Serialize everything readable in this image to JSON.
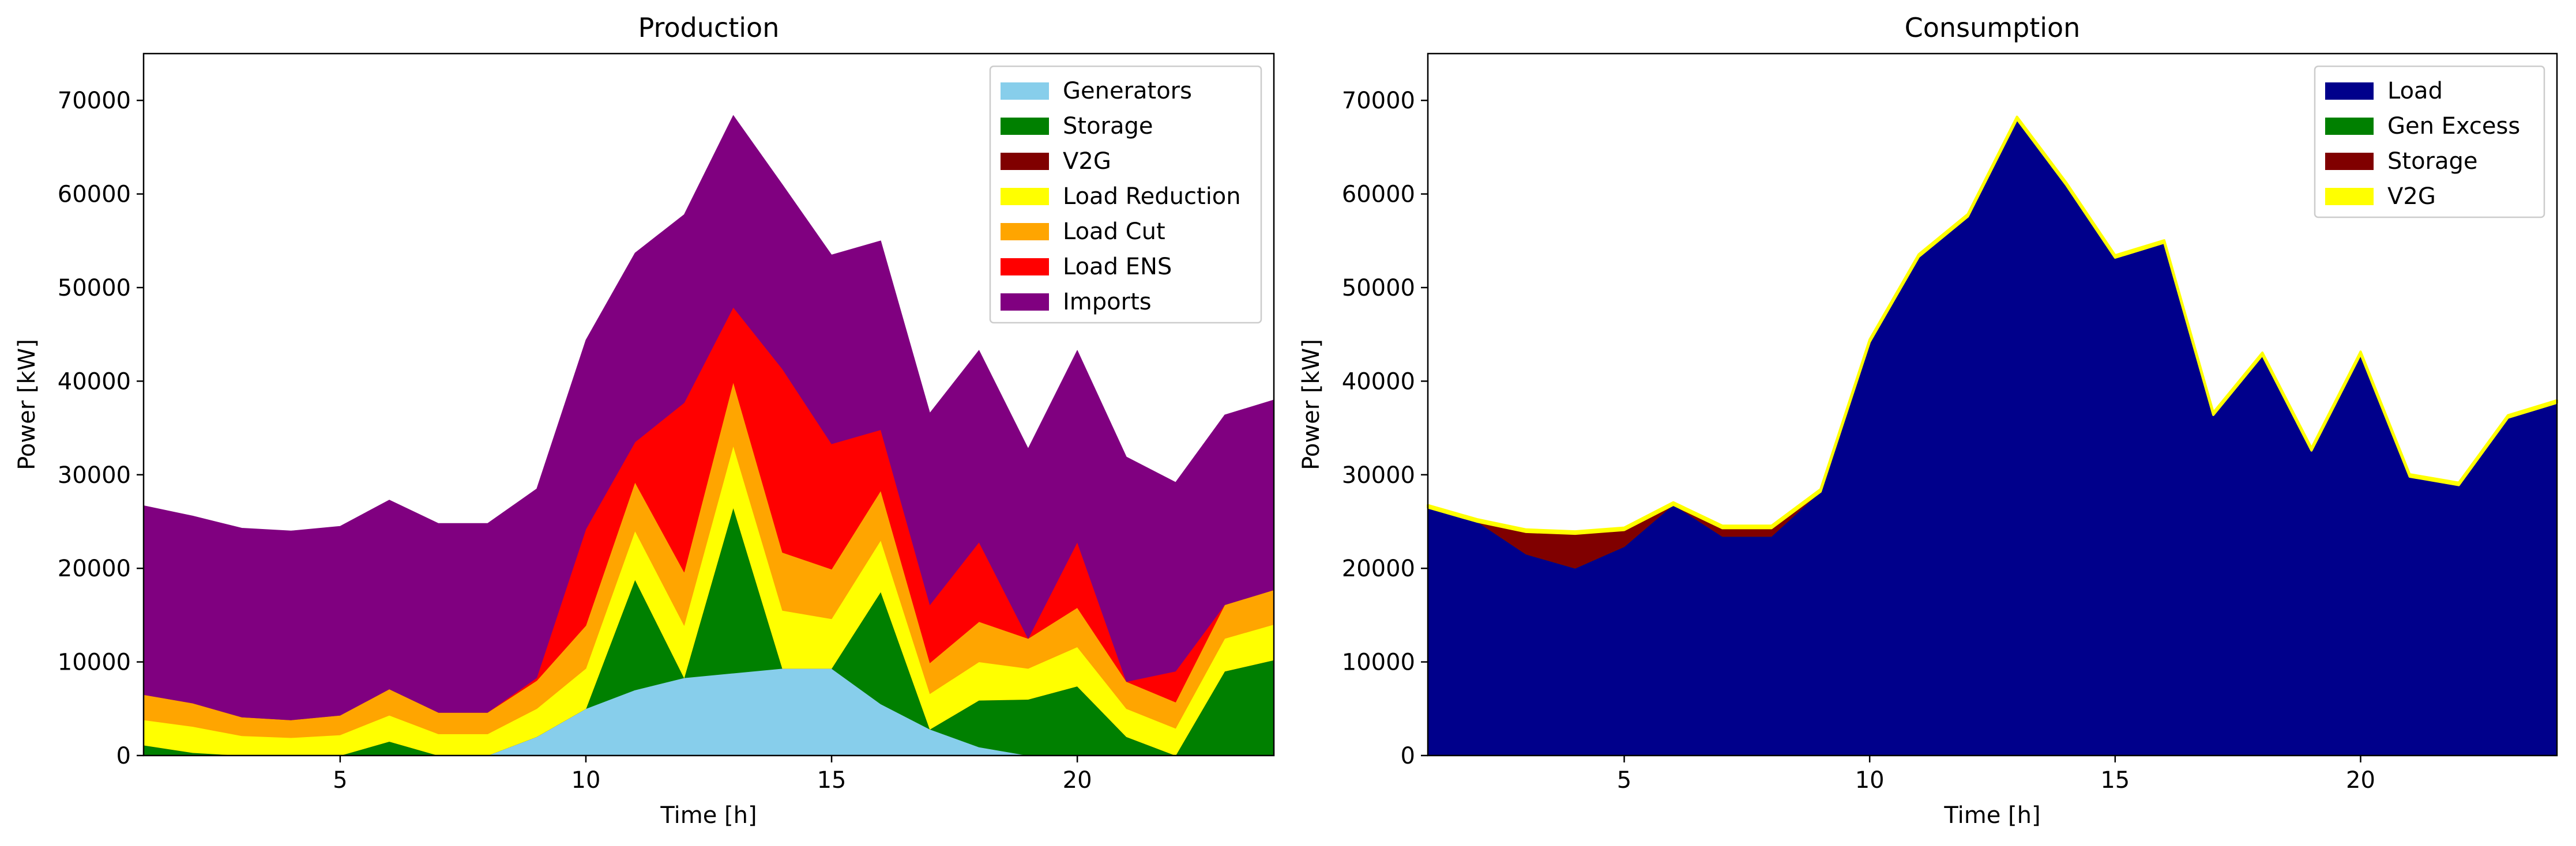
{
  "colors": {
    "generators": "#87ceeb",
    "storage": "#008000",
    "v2g": "#800000",
    "load_reduction": "#ffff00",
    "load_cut": "#ffa500",
    "load_ens": "#ff0000",
    "imports": "#800080",
    "load": "#00008b",
    "gen_excess": "#008000",
    "consumption_storage": "#800000",
    "consumption_v2g": "#ffff00"
  },
  "chart_data": [
    {
      "type": "area",
      "stacked": true,
      "title": "Production",
      "xlabel": "Time [h]",
      "ylabel": "Power [kW]",
      "xlim": [
        1,
        24
      ],
      "ylim": [
        0,
        75000
      ],
      "xticks": [
        5,
        10,
        15,
        20
      ],
      "yticks": [
        0,
        10000,
        20000,
        30000,
        40000,
        50000,
        60000,
        70000
      ],
      "legend_position": "upper right",
      "grid": false,
      "x": [
        1,
        2,
        3,
        4,
        5,
        6,
        7,
        8,
        9,
        10,
        11,
        12,
        13,
        14,
        15,
        16,
        17,
        18,
        19,
        20,
        21,
        22,
        23,
        24
      ],
      "series": [
        {
          "name": "Generators",
          "color": "#87ceeb",
          "values": [
            0,
            0,
            0,
            0,
            0,
            0,
            0,
            0,
            2000,
            5000,
            7000,
            8300,
            8800,
            9300,
            9300,
            5500,
            2800,
            900,
            0,
            0,
            0,
            0,
            0,
            0
          ]
        },
        {
          "name": "Storage",
          "color": "#008000",
          "values": [
            1100,
            300,
            0,
            0,
            0,
            1500,
            0,
            0,
            0,
            0,
            11800,
            0,
            17700,
            0,
            0,
            12000,
            0,
            5000,
            6000,
            7400,
            2000,
            0,
            9000,
            10200
          ]
        },
        {
          "name": "V2G",
          "color": "#800000",
          "values": [
            0,
            0,
            0,
            0,
            0,
            0,
            0,
            0,
            0,
            0,
            0,
            0,
            0,
            0,
            0,
            0,
            0,
            0,
            0,
            0,
            0,
            0,
            0,
            0
          ]
        },
        {
          "name": "Load Reduction",
          "color": "#ffff00",
          "values": [
            2700,
            2800,
            2100,
            1900,
            2200,
            2800,
            2300,
            2300,
            3000,
            4300,
            5200,
            5600,
            6600,
            6200,
            5300,
            5500,
            3800,
            4100,
            3300,
            4200,
            3000,
            2900,
            3500,
            3800
          ]
        },
        {
          "name": "Load Cut",
          "color": "#ffa500",
          "values": [
            2700,
            2500,
            2000,
            1900,
            2100,
            2800,
            2300,
            2300,
            3000,
            4600,
            5200,
            5700,
            6800,
            6200,
            5300,
            5300,
            3300,
            4300,
            3200,
            4200,
            2900,
            2800,
            3600,
            3700
          ]
        },
        {
          "name": "Load ENS",
          "color": "#ff0000",
          "values": [
            0,
            0,
            0,
            0,
            0,
            0,
            0,
            0,
            300,
            10300,
            4300,
            18100,
            8000,
            19600,
            13400,
            6500,
            6200,
            8500,
            0,
            7000,
            0,
            3300,
            0,
            0
          ]
        },
        {
          "name": "Imports",
          "color": "#800080",
          "values": [
            20200,
            20000,
            20200,
            20200,
            20200,
            20200,
            20200,
            20200,
            20200,
            20200,
            20200,
            20100,
            20500,
            19700,
            20200,
            20200,
            20500,
            20500,
            20300,
            20500,
            24000,
            20200,
            20300,
            20300
          ]
        }
      ]
    },
    {
      "type": "area",
      "stacked": true,
      "title": "Consumption",
      "xlabel": "Time [h]",
      "ylabel": "Power [kW]",
      "xlim": [
        1,
        24
      ],
      "ylim": [
        0,
        75000
      ],
      "xticks": [
        5,
        10,
        15,
        20
      ],
      "yticks": [
        0,
        10000,
        20000,
        30000,
        40000,
        50000,
        60000,
        70000
      ],
      "legend_position": "upper right",
      "grid": false,
      "x": [
        1,
        2,
        3,
        4,
        5,
        6,
        7,
        8,
        9,
        10,
        11,
        12,
        13,
        14,
        15,
        16,
        17,
        18,
        19,
        20,
        21,
        22,
        23,
        24
      ],
      "series": [
        {
          "name": "Load",
          "color": "#00008b",
          "values": [
            26500,
            25000,
            21500,
            20000,
            22300,
            26800,
            23400,
            23400,
            28200,
            44200,
            53300,
            57600,
            68000,
            61000,
            53200,
            54800,
            36400,
            42800,
            32600,
            42900,
            29800,
            28900,
            36100,
            37700
          ]
        },
        {
          "name": "Gen Excess",
          "color": "#008000",
          "values": [
            0,
            0,
            0,
            0,
            0,
            0,
            0,
            0,
            0,
            0,
            0,
            0,
            0,
            0,
            0,
            0,
            0,
            0,
            0,
            0,
            0,
            0,
            0,
            0
          ]
        },
        {
          "name": "Storage",
          "color": "#800000",
          "values": [
            0,
            0,
            2400,
            3700,
            1800,
            0,
            900,
            900,
            0,
            0,
            0,
            0,
            0,
            0,
            0,
            0,
            0,
            0,
            0,
            0,
            0,
            0,
            0,
            0
          ]
        },
        {
          "name": "V2G",
          "color": "#ffff00",
          "values": [
            250,
            250,
            250,
            250,
            250,
            250,
            250,
            250,
            250,
            250,
            250,
            250,
            250,
            250,
            250,
            250,
            250,
            250,
            250,
            250,
            250,
            250,
            250,
            250
          ]
        }
      ]
    }
  ]
}
